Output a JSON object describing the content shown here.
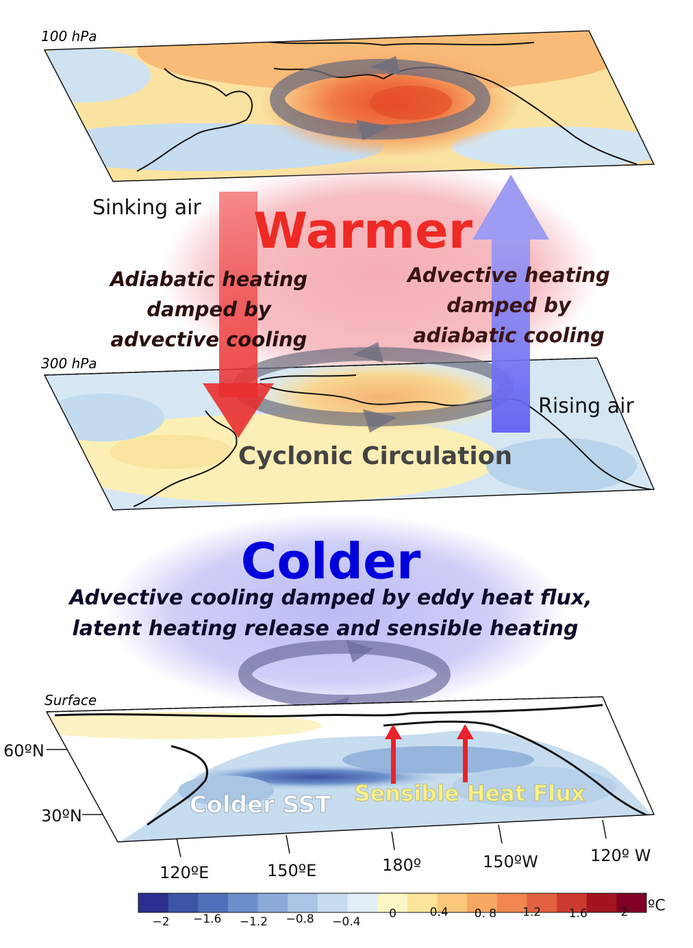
{
  "levels": {
    "top": "100 hPa",
    "middle": "300 hPa",
    "bottom": "Surface"
  },
  "labels": {
    "warmer": "Warmer",
    "colder": "Colder",
    "sinking_air": "Sinking air",
    "rising_air": "Rising air",
    "left_process": [
      "Adiabatic heating",
      "damped by",
      "advective cooling"
    ],
    "right_process": [
      "Advective heating",
      "damped by",
      "adiabatic cooling"
    ],
    "cyclonic": "Cyclonic Circulation",
    "cold_process": [
      "Advective cooling damped by eddy heat flux,",
      "latent heating release and sensible heating"
    ],
    "colder_sst": "Colder SST",
    "sensible_heat": "Sensible Heat Flux"
  },
  "axes": {
    "lat": [
      "60ºN",
      "30ºN"
    ],
    "lon": [
      "120ºE",
      "150ºE",
      "180º",
      "150ºW",
      "120º W"
    ]
  },
  "colorbar": {
    "ticks": [
      "−2",
      "−1.6",
      "−1.2",
      "−0.8",
      "−0.4",
      "0",
      "0.4",
      "0. 8",
      "1.2",
      "1.6",
      "2"
    ],
    "unit": "ºC",
    "colors": [
      "#2b2f8f",
      "#3c55a5",
      "#4f70b8",
      "#6b8fca",
      "#8aabd8",
      "#a8c5e4",
      "#c6dcef",
      "#e2eff7",
      "#fbf7c4",
      "#fce49a",
      "#f9c77a",
      "#f5a862",
      "#ef8650",
      "#e2623f",
      "#cc3a30",
      "#a2141f",
      "#800026"
    ]
  },
  "colors": {
    "warm_glow": "#f3a6ad",
    "cold_glow": "#b9b9f5",
    "warmer_text": "#ee2a24",
    "colder_text": "#0000dd",
    "sinking_arrow": "#ec3b3b",
    "rising_arrow": "#6d6ff0",
    "heat_arrow": "#e8232a",
    "sensible_text": "#f7f08c"
  }
}
